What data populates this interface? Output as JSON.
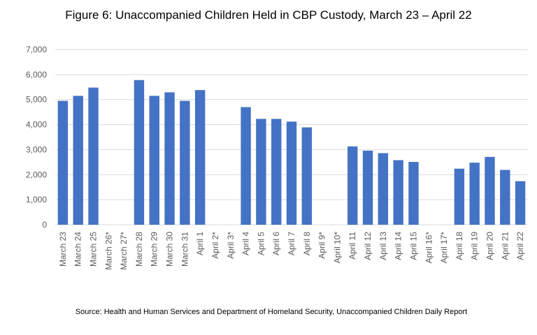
{
  "chart_data": {
    "type": "bar",
    "title": "Figure 6: Unaccompanied Children Held in CBP Custody, March 23 – April 22",
    "source": "Source: Health and Human Services and Department of Homeland Security, Unaccompanied Children Daily Report",
    "categories": [
      "March 23",
      "March 24",
      "March 25",
      "March 26*",
      "March 27*",
      "March 28",
      "March 29",
      "March 30",
      "March 31",
      "April 1",
      "April 2*",
      "April 3*",
      "April 4",
      "April 5",
      "April 6",
      "April 7",
      "April 8",
      "April 9*",
      "April 10*",
      "April 11",
      "April 12",
      "April 13",
      "April 14",
      "April 15",
      "April 16*",
      "April 17*",
      "April 18",
      "April 19",
      "April 20",
      "April 21",
      "April 22"
    ],
    "values": [
      4950,
      5150,
      5480,
      null,
      null,
      5780,
      5150,
      5290,
      4950,
      5380,
      null,
      null,
      4700,
      4230,
      4230,
      4120,
      3890,
      null,
      null,
      3130,
      2960,
      2860,
      2580,
      2510,
      null,
      null,
      2240,
      2480,
      2710,
      2190,
      1740
    ],
    "y_ticks": [
      "0",
      "1,000",
      "2,000",
      "3,000",
      "4,000",
      "5,000",
      "6,000",
      "7,000"
    ],
    "ylim": [
      0,
      7000
    ],
    "grid": true,
    "legend": "none",
    "bar_color": "#4472c4",
    "grid_color": "#d9d9d9",
    "label_color": "#595959"
  }
}
